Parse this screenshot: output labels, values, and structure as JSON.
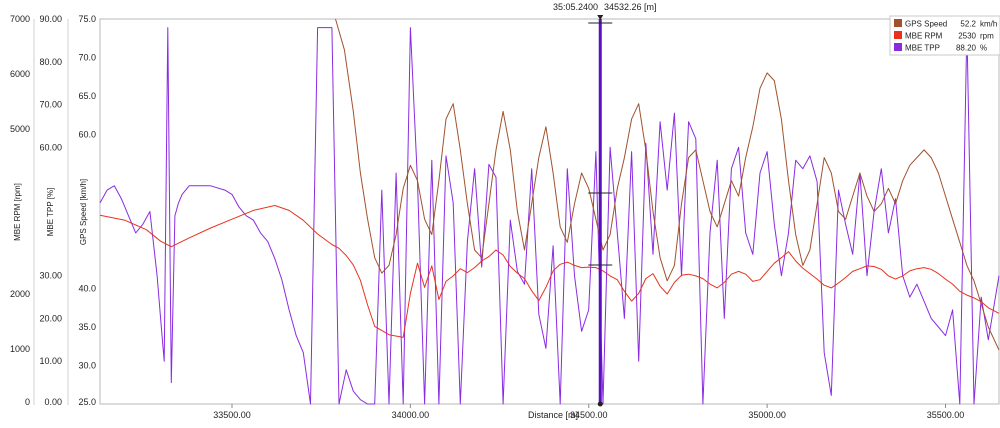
{
  "chart_data": {
    "type": "line",
    "cursor": {
      "time": "35:05.2400",
      "distance": "34532.26 [m]"
    },
    "x_axis": {
      "label": "Distance [m]",
      "range": [
        33130,
        35650
      ],
      "ticks": [
        "33500.00",
        "34000.00",
        "34500.00",
        "35000.00",
        "35500.00"
      ],
      "tick_values": [
        33500,
        34000,
        34500,
        35000,
        35500
      ]
    },
    "y_axes": [
      {
        "id": "rpm",
        "label": "MBE RPM [rpm]",
        "range": [
          0,
          7000
        ],
        "ticks": [
          "0",
          "1000",
          "2000",
          "5000",
          "6000",
          "7000"
        ],
        "tick_values": [
          0,
          1000,
          2000,
          5000,
          6000,
          7000
        ]
      },
      {
        "id": "tpp",
        "label": "MBE TPP [%]",
        "range": [
          0,
          90
        ],
        "ticks": [
          "0.00",
          "10.00",
          "20.00",
          "30.00",
          "60.00",
          "70.00",
          "80.00",
          "90.00"
        ],
        "tick_values": [
          0,
          10,
          20,
          30,
          60,
          70,
          80,
          90
        ]
      },
      {
        "id": "speed",
        "label": "GPS Speed [km/h]",
        "range": [
          25,
          75
        ],
        "ticks": [
          "25.0",
          "30.0",
          "35.0",
          "40.0",
          "60.0",
          "65.0",
          "70.0",
          "75.0"
        ],
        "tick_values": [
          25,
          30,
          35,
          40,
          60,
          65,
          70,
          75
        ]
      }
    ],
    "legend": [
      {
        "name": "GPS Speed",
        "value": "52.2",
        "unit": "km/h",
        "color": "#a0522d"
      },
      {
        "name": "MBE RPM",
        "value": "2530",
        "unit": "rpm",
        "color": "#e8321e"
      },
      {
        "name": "MBE TPP",
        "value": "88.20",
        "unit": "%",
        "color": "#8a2be2"
      }
    ],
    "series": [
      {
        "name": "GPS Speed",
        "axis": "speed",
        "color": "#a0522d",
        "x": [
          33790,
          33815,
          33840,
          33860,
          33880,
          33900,
          33920,
          33940,
          33960,
          33980,
          34000,
          34020,
          34040,
          34060,
          34080,
          34100,
          34120,
          34140,
          34160,
          34180,
          34200,
          34220,
          34240,
          34260,
          34280,
          34300,
          34320,
          34340,
          34360,
          34380,
          34400,
          34420,
          34440,
          34460,
          34480,
          34500,
          34520,
          34540,
          34560,
          34580,
          34600,
          34620,
          34640,
          34660,
          34680,
          34700,
          34720,
          34740,
          34760,
          34780,
          34800,
          34820,
          34840,
          34860,
          34880,
          34900,
          34920,
          34940,
          34960,
          34980,
          35000,
          35020,
          35040,
          35060,
          35080,
          35100,
          35120,
          35140,
          35160,
          35180,
          35200,
          35220,
          35240,
          35260,
          35280,
          35300,
          35320,
          35340,
          35360,
          35380,
          35400,
          35420,
          35440,
          35460,
          35480,
          35500,
          35520,
          35540,
          35560,
          35580,
          35600,
          35620,
          35650
        ],
        "y": [
          75,
          71,
          63,
          55,
          49,
          44,
          42,
          43,
          47,
          53,
          56,
          54,
          49,
          47,
          54,
          62,
          64,
          58,
          51,
          45,
          44,
          51,
          58,
          63,
          58,
          50,
          45,
          51,
          57,
          61,
          55,
          48,
          46,
          51,
          55,
          53,
          49,
          45,
          47,
          53,
          57,
          62,
          64,
          58,
          50,
          44,
          41,
          43,
          51,
          57,
          58,
          54,
          50,
          48,
          51,
          54,
          52,
          57,
          61,
          66,
          68,
          67,
          62,
          54,
          47,
          43,
          45,
          51,
          57,
          55,
          50,
          49,
          52,
          55,
          52,
          50,
          51,
          53,
          51,
          54,
          56,
          57,
          58,
          57,
          55,
          52,
          49,
          46,
          43,
          41,
          38,
          35,
          32
        ]
      },
      {
        "name": "MBE RPM",
        "axis": "rpm",
        "color": "#e8321e",
        "x": [
          33130,
          33200,
          33260,
          33300,
          33330,
          33380,
          33440,
          33500,
          33560,
          33620,
          33660,
          33700,
          33740,
          33780,
          33800,
          33820,
          33840,
          33860,
          33880,
          33900,
          33940,
          33980,
          34000,
          34020,
          34040,
          34060,
          34080,
          34100,
          34120,
          34140,
          34160,
          34180,
          34200,
          34220,
          34240,
          34260,
          34280,
          34300,
          34320,
          34340,
          34360,
          34380,
          34400,
          34420,
          34440,
          34460,
          34480,
          34500,
          34520,
          34540,
          34560,
          34580,
          34600,
          34620,
          34640,
          34660,
          34680,
          34700,
          34720,
          34740,
          34760,
          34780,
          34800,
          34820,
          34840,
          34860,
          34880,
          34900,
          34920,
          34940,
          34960,
          34980,
          35000,
          35020,
          35040,
          35060,
          35080,
          35100,
          35120,
          35140,
          35160,
          35180,
          35200,
          35220,
          35240,
          35260,
          35280,
          35300,
          35320,
          35340,
          35360,
          35380,
          35400,
          35420,
          35440,
          35460,
          35480,
          35500,
          35520,
          35540,
          35560,
          35580,
          35600,
          35620,
          35650
        ],
        "y": [
          3430,
          3340,
          3170,
          2960,
          2860,
          3020,
          3200,
          3360,
          3520,
          3610,
          3520,
          3340,
          3090,
          2900,
          2830,
          2700,
          2530,
          2250,
          1800,
          1410,
          1260,
          1210,
          2010,
          2560,
          2120,
          2510,
          1900,
          2230,
          2330,
          2460,
          2390,
          2480,
          2600,
          2680,
          2800,
          2710,
          2500,
          2380,
          2280,
          2060,
          1880,
          2120,
          2420,
          2540,
          2580,
          2520,
          2480,
          2490,
          2480,
          2420,
          2330,
          2260,
          2050,
          1870,
          2010,
          2280,
          2370,
          2140,
          2000,
          2210,
          2340,
          2360,
          2330,
          2280,
          2180,
          2110,
          2210,
          2360,
          2410,
          2360,
          2230,
          2260,
          2410,
          2560,
          2660,
          2770,
          2600,
          2470,
          2370,
          2270,
          2160,
          2110,
          2200,
          2300,
          2410,
          2460,
          2510,
          2500,
          2450,
          2330,
          2270,
          2330,
          2420,
          2460,
          2480,
          2450,
          2370,
          2270,
          2180,
          2050,
          1980,
          1930,
          1860,
          1750,
          1650
        ]
      },
      {
        "name": "MBE TPP",
        "axis": "tpp",
        "color": "#8a2be2",
        "x": [
          33130,
          33150,
          33170,
          33190,
          33210,
          33230,
          33250,
          33270,
          33290,
          33300,
          33310,
          33320,
          33330,
          33340,
          33350,
          33360,
          33380,
          33400,
          33440,
          33480,
          33500,
          33520,
          33540,
          33560,
          33580,
          33600,
          33620,
          33640,
          33660,
          33680,
          33700,
          33720,
          33740,
          33760,
          33780,
          33800,
          33820,
          33840,
          33860,
          33880,
          33900,
          33920,
          33940,
          33960,
          33980,
          34000,
          34020,
          34040,
          34060,
          34080,
          34100,
          34120,
          34140,
          34160,
          34180,
          34200,
          34220,
          34240,
          34260,
          34280,
          34300,
          34320,
          34340,
          34360,
          34380,
          34400,
          34420,
          34440,
          34460,
          34480,
          34500,
          34520,
          34540,
          34560,
          34580,
          34600,
          34620,
          34640,
          34660,
          34680,
          34700,
          34720,
          34740,
          34760,
          34780,
          34800,
          34820,
          34840,
          34860,
          34880,
          34900,
          34920,
          34940,
          34960,
          34980,
          35000,
          35020,
          35040,
          35060,
          35080,
          35100,
          35120,
          35140,
          35160,
          35180,
          35200,
          35220,
          35240,
          35260,
          35280,
          35300,
          35320,
          35340,
          35360,
          35380,
          35400,
          35420,
          35440,
          35460,
          35480,
          35500,
          35520,
          35540,
          35560,
          35580,
          35600,
          35620,
          35650
        ],
        "y": [
          47,
          50,
          51,
          48,
          44,
          40,
          42,
          45,
          30,
          20,
          10,
          88,
          5,
          44,
          47,
          49,
          51,
          51,
          51,
          50,
          49,
          46,
          44,
          43,
          40,
          38,
          34,
          29,
          22,
          16,
          12,
          0,
          88,
          88,
          88,
          0,
          8,
          3,
          1,
          0,
          0,
          50,
          0,
          54,
          0,
          88,
          52,
          0,
          57,
          0,
          58,
          47,
          0,
          38,
          55,
          32,
          56,
          53,
          0,
          43,
          31,
          28,
          55,
          21,
          13,
          37,
          0,
          55,
          30,
          17,
          22,
          59,
          0,
          60,
          40,
          20,
          59,
          10,
          61,
          35,
          66,
          50,
          68,
          30,
          66,
          62,
          0,
          40,
          57,
          20,
          55,
          60,
          40,
          35,
          54,
          59,
          42,
          30,
          40,
          57,
          55,
          58,
          52,
          12,
          2,
          50,
          42,
          35,
          54,
          30,
          45,
          55,
          40,
          48,
          30,
          25,
          28,
          24,
          20,
          18,
          16,
          22,
          0,
          88,
          0,
          25,
          15,
          30
        ]
      }
    ]
  }
}
